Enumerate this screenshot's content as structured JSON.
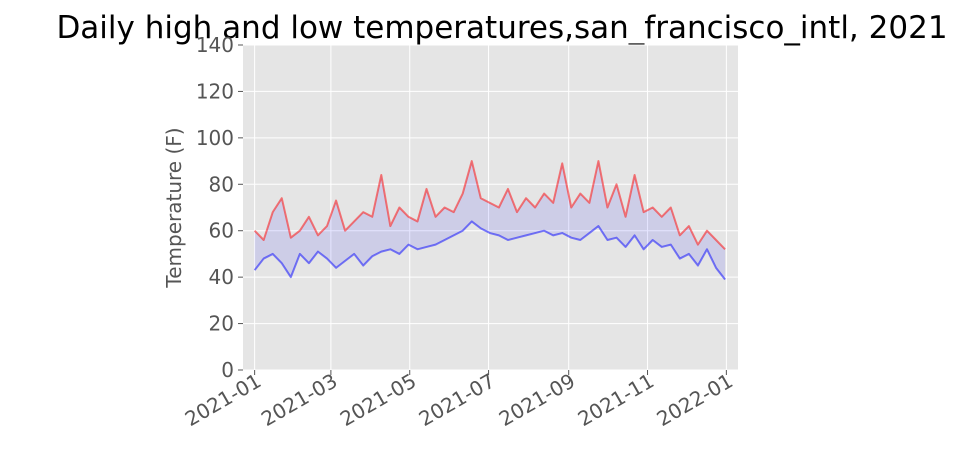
{
  "chart_data": {
    "type": "line",
    "title": "Daily high and low temperatures,san_francisco_intl, 2021",
    "xlabel": "",
    "ylabel": "Temperature (F)",
    "xlim": [
      "2020-12-23",
      "2022-01-10"
    ],
    "ylim": [
      0,
      140
    ],
    "grid": true,
    "legend": "none",
    "fill_between": {
      "color": "#0000ff",
      "alpha": 0.1
    },
    "x_ticks": [
      "2021-01",
      "2021-03",
      "2021-05",
      "2021-07",
      "2021-09",
      "2021-11",
      "2022-01"
    ],
    "y_ticks": [
      0,
      20,
      40,
      60,
      80,
      100,
      120,
      140
    ],
    "x": [
      "2021-01-01",
      "2021-01-08",
      "2021-01-15",
      "2021-01-22",
      "2021-01-29",
      "2021-02-05",
      "2021-02-12",
      "2021-02-19",
      "2021-02-26",
      "2021-03-05",
      "2021-03-12",
      "2021-03-19",
      "2021-03-26",
      "2021-04-02",
      "2021-04-09",
      "2021-04-16",
      "2021-04-23",
      "2021-04-30",
      "2021-05-07",
      "2021-05-14",
      "2021-05-21",
      "2021-05-28",
      "2021-06-04",
      "2021-06-11",
      "2021-06-18",
      "2021-06-25",
      "2021-07-02",
      "2021-07-09",
      "2021-07-16",
      "2021-07-23",
      "2021-07-30",
      "2021-08-06",
      "2021-08-13",
      "2021-08-20",
      "2021-08-27",
      "2021-09-03",
      "2021-09-10",
      "2021-09-17",
      "2021-09-24",
      "2021-10-01",
      "2021-10-08",
      "2021-10-15",
      "2021-10-22",
      "2021-10-29",
      "2021-11-05",
      "2021-11-12",
      "2021-11-19",
      "2021-11-26",
      "2021-12-03",
      "2021-12-10",
      "2021-12-17",
      "2021-12-24",
      "2021-12-31"
    ],
    "series": [
      {
        "color": "#ff0000",
        "alpha": 0.5,
        "values": [
          60,
          56,
          68,
          74,
          57,
          60,
          66,
          58,
          62,
          73,
          60,
          64,
          68,
          66,
          84,
          62,
          70,
          66,
          64,
          78,
          66,
          70,
          68,
          76,
          90,
          74,
          72,
          70,
          78,
          68,
          74,
          70,
          76,
          72,
          89,
          70,
          76,
          72,
          90,
          70,
          80,
          66,
          84,
          68,
          70,
          66,
          70,
          58,
          62,
          54,
          60,
          56,
          52
        ]
      },
      {
        "color": "#0000ff",
        "alpha": 0.5,
        "values": [
          43,
          48,
          50,
          46,
          40,
          50,
          46,
          51,
          48,
          44,
          47,
          50,
          45,
          49,
          51,
          52,
          50,
          54,
          52,
          53,
          54,
          56,
          58,
          60,
          64,
          61,
          59,
          58,
          56,
          57,
          58,
          59,
          60,
          58,
          59,
          57,
          56,
          59,
          62,
          56,
          57,
          53,
          58,
          52,
          56,
          53,
          54,
          48,
          50,
          45,
          52,
          44,
          39
        ]
      }
    ]
  }
}
